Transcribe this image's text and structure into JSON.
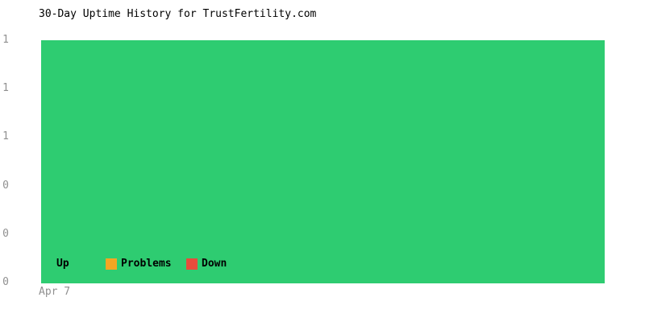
{
  "chart_data": {
    "type": "area",
    "title": "30-Day Uptime History for TrustFertility.com",
    "days": 30,
    "x_ticks": [
      "Apr 7"
    ],
    "xlabel": "",
    "ylabel": "",
    "ylim": [
      0,
      1
    ],
    "grid": false,
    "legend_position": "bottom-left-inside-plot",
    "y_ticks": [
      {
        "value": 1.0,
        "label": "1"
      },
      {
        "value": 0.8,
        "label": "1"
      },
      {
        "value": 0.6,
        "label": "1"
      },
      {
        "value": 0.4,
        "label": "0"
      },
      {
        "value": 0.2,
        "label": "0"
      },
      {
        "value": 0.0,
        "label": "0"
      }
    ],
    "series": [
      {
        "name": "Up",
        "color": "#2ECC71",
        "values": [
          1,
          1,
          1,
          1,
          1,
          1,
          1,
          1,
          1,
          1,
          1,
          1,
          1,
          1,
          1,
          1,
          1,
          1,
          1,
          1,
          1,
          1,
          1,
          1,
          1,
          1,
          1,
          1,
          1,
          1
        ]
      },
      {
        "name": "Problems",
        "color": "#F5A623",
        "values": [
          0,
          0,
          0,
          0,
          0,
          0,
          0,
          0,
          0,
          0,
          0,
          0,
          0,
          0,
          0,
          0,
          0,
          0,
          0,
          0,
          0,
          0,
          0,
          0,
          0,
          0,
          0,
          0,
          0,
          0
        ]
      },
      {
        "name": "Down",
        "color": "#E74C3C",
        "values": [
          0,
          0,
          0,
          0,
          0,
          0,
          0,
          0,
          0,
          0,
          0,
          0,
          0,
          0,
          0,
          0,
          0,
          0,
          0,
          0,
          0,
          0,
          0,
          0,
          0,
          0,
          0,
          0,
          0,
          0
        ]
      }
    ],
    "legend": [
      {
        "label": "Up",
        "color": "#2ECC71"
      },
      {
        "label": "Problems",
        "color": "#F5A623"
      },
      {
        "label": "Down",
        "color": "#E74C3C"
      }
    ]
  },
  "colors": {
    "up": "#2ECC71",
    "problems": "#F5A623",
    "down": "#E74C3C",
    "axis_text": "#909090",
    "title_text": "#000000",
    "background": "#FFFFFF"
  }
}
